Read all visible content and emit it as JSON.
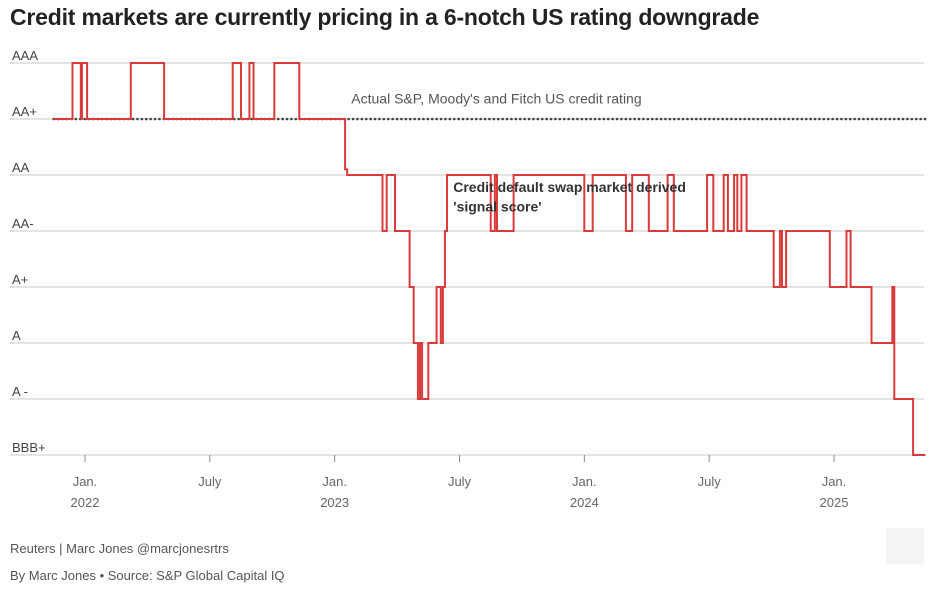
{
  "title": "Credit markets are currently pricing in a 6-notch US rating downgrade",
  "footer": {
    "credit": "Reuters | Marc Jones @marcjonesrtrs",
    "source": "By Marc Jones • Source: S&P Global Capital IQ"
  },
  "chart_data": {
    "type": "line",
    "title": "Credit markets are currently pricing in a 6-notch US rating downgrade",
    "xlabel": "",
    "ylabel": "",
    "y_levels": [
      "BBB+",
      "A -",
      "A",
      "A+",
      "AA-",
      "AA",
      "AA+",
      "AAA"
    ],
    "x_ticks": [
      {
        "label": "Jan.",
        "sub": "2022",
        "month": 0
      },
      {
        "label": "July",
        "sub": "",
        "month": 6
      },
      {
        "label": "Jan.",
        "sub": "2023",
        "month": 12
      },
      {
        "label": "July",
        "sub": "",
        "month": 18
      },
      {
        "label": "Jan.",
        "sub": "2024",
        "month": 24
      },
      {
        "label": "July",
        "sub": "",
        "month": 30
      },
      {
        "label": "Jan.",
        "sub": "2025",
        "month": 36
      }
    ],
    "xlim": [
      -1.9,
      40.5
    ],
    "ylim": [
      0,
      7
    ],
    "series": [
      {
        "name": "Actual S&P, Moody's and Fitch US credit rating",
        "style": "dotted",
        "color": "#444444",
        "points": [
          [
            -1.5,
            6
          ],
          [
            40.4,
            6
          ]
        ]
      },
      {
        "name": "Credit default swap market derived 'signal score'",
        "style": "step",
        "color": "#d93b3b",
        "points": [
          [
            -1.5,
            6
          ],
          [
            -0.6,
            6
          ],
          [
            -0.6,
            7
          ],
          [
            -0.2,
            7
          ],
          [
            -0.2,
            6
          ],
          [
            -0.15,
            6
          ],
          [
            -0.15,
            7
          ],
          [
            0.1,
            7
          ],
          [
            0.1,
            6
          ],
          [
            2.2,
            6
          ],
          [
            2.2,
            7
          ],
          [
            3.8,
            7
          ],
          [
            3.8,
            6
          ],
          [
            7.1,
            6
          ],
          [
            7.1,
            7
          ],
          [
            7.5,
            7
          ],
          [
            7.5,
            6
          ],
          [
            7.9,
            6
          ],
          [
            7.9,
            7
          ],
          [
            8.1,
            7
          ],
          [
            8.1,
            6
          ],
          [
            9.1,
            6
          ],
          [
            9.1,
            7
          ],
          [
            10.3,
            7
          ],
          [
            10.3,
            6
          ],
          [
            12.5,
            6
          ],
          [
            12.5,
            5.1
          ],
          [
            12.6,
            5.1
          ],
          [
            12.6,
            5
          ],
          [
            14.3,
            5
          ],
          [
            14.3,
            4
          ],
          [
            14.5,
            4
          ],
          [
            14.5,
            5
          ],
          [
            14.9,
            5
          ],
          [
            14.9,
            4
          ],
          [
            15.6,
            4
          ],
          [
            15.6,
            3
          ],
          [
            15.8,
            3
          ],
          [
            15.8,
            2
          ],
          [
            16.0,
            2
          ],
          [
            16.0,
            1
          ],
          [
            16.1,
            1
          ],
          [
            16.1,
            2
          ],
          [
            16.2,
            2
          ],
          [
            16.2,
            1
          ],
          [
            16.5,
            1
          ],
          [
            16.5,
            2
          ],
          [
            16.9,
            2
          ],
          [
            16.9,
            3
          ],
          [
            17.1,
            3
          ],
          [
            17.1,
            2
          ],
          [
            17.2,
            2
          ],
          [
            17.2,
            3
          ],
          [
            17.3,
            3
          ],
          [
            17.3,
            4
          ],
          [
            17.4,
            4
          ],
          [
            17.4,
            5
          ],
          [
            19.5,
            5
          ],
          [
            19.5,
            4
          ],
          [
            19.7,
            4
          ],
          [
            19.7,
            5
          ],
          [
            19.8,
            5
          ],
          [
            19.8,
            4
          ],
          [
            20.6,
            4
          ],
          [
            20.6,
            5
          ],
          [
            24.0,
            5
          ],
          [
            24.0,
            4
          ],
          [
            24.4,
            4
          ],
          [
            24.4,
            5
          ],
          [
            26.0,
            5
          ],
          [
            26.0,
            4
          ],
          [
            26.3,
            4
          ],
          [
            26.3,
            5
          ],
          [
            27.1,
            5
          ],
          [
            27.1,
            4
          ],
          [
            28.0,
            4
          ],
          [
            28.0,
            5
          ],
          [
            28.3,
            5
          ],
          [
            28.3,
            4
          ],
          [
            29.9,
            4
          ],
          [
            29.9,
            5
          ],
          [
            30.2,
            5
          ],
          [
            30.2,
            4
          ],
          [
            30.7,
            4
          ],
          [
            30.7,
            5
          ],
          [
            30.9,
            5
          ],
          [
            30.9,
            4
          ],
          [
            31.2,
            4
          ],
          [
            31.2,
            5
          ],
          [
            31.35,
            5
          ],
          [
            31.35,
            4
          ],
          [
            31.55,
            4
          ],
          [
            31.55,
            5
          ],
          [
            31.8,
            5
          ],
          [
            31.8,
            4
          ],
          [
            33.1,
            4
          ],
          [
            33.1,
            3
          ],
          [
            33.4,
            3
          ],
          [
            33.4,
            4
          ],
          [
            33.5,
            4
          ],
          [
            33.5,
            3
          ],
          [
            33.7,
            3
          ],
          [
            33.7,
            4
          ],
          [
            35.8,
            4
          ],
          [
            35.8,
            3
          ],
          [
            36.6,
            3
          ],
          [
            36.6,
            4
          ],
          [
            36.8,
            4
          ],
          [
            36.8,
            3
          ],
          [
            37.8,
            3
          ],
          [
            37.8,
            2
          ],
          [
            38.8,
            2
          ],
          [
            38.8,
            3
          ],
          [
            38.9,
            3
          ],
          [
            38.9,
            1
          ],
          [
            39.8,
            1
          ],
          [
            39.8,
            0
          ],
          [
            40.4,
            0
          ]
        ]
      }
    ],
    "annotations": [
      {
        "text": "Actual S&P, Moody's and Fitch US credit rating",
        "bold": false,
        "at": [
          12.8,
          6.28
        ]
      },
      {
        "text": "Credit default swap market derived",
        "bold": true,
        "at": [
          17.7,
          4.7
        ]
      },
      {
        "text": "'signal score'",
        "bold": true,
        "at": [
          17.7,
          4.35
        ]
      }
    ]
  }
}
